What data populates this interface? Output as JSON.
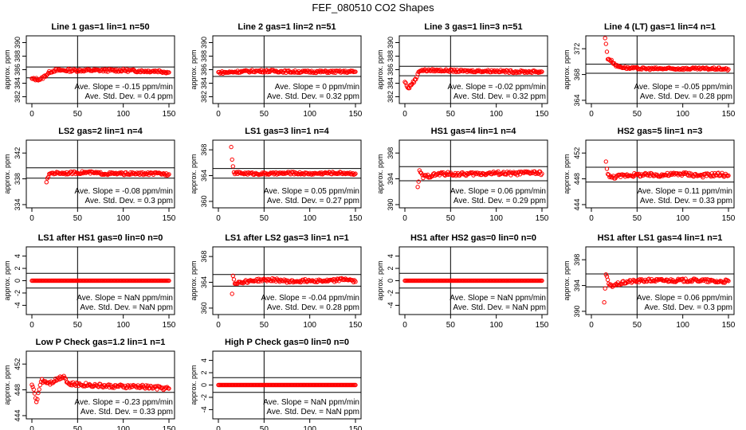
{
  "title": "FEF_080510  CO2 Shapes",
  "colors": {
    "points": "#ff0000",
    "axes": "#000000"
  },
  "common": {
    "ylabel": "approx. ppm",
    "slope_prefix": "Ave. Slope = ",
    "slope_unit": " ppm/min",
    "sd_prefix": "Ave. Std. Dev. = ",
    "sd_unit": " ppm",
    "x_ticks": [
      "0",
      "50",
      "100",
      "150"
    ],
    "xlim": [
      0,
      150
    ]
  },
  "chart_data": [
    {
      "type": "scatter",
      "title": "Line 1 gas=1 lin=1 n=50",
      "ylim": [
        381,
        391
      ],
      "yticks": [
        382,
        384,
        386,
        388,
        390
      ],
      "hlines": [
        384.8,
        386.4
      ],
      "slope": "-0.15",
      "sd": "0.4",
      "x": [
        0,
        10,
        20,
        25,
        40,
        60,
        80,
        100,
        120,
        140,
        150
      ],
      "y": [
        384.6,
        384.6,
        385.7,
        385.9,
        385.9,
        385.9,
        385.9,
        385.9,
        385.8,
        385.8,
        385.6
      ]
    },
    {
      "type": "scatter",
      "title": "Line 2 gas=1 lin=2 n=51",
      "ylim": [
        381,
        391
      ],
      "yticks": [
        382,
        384,
        386,
        388,
        390
      ],
      "hlines": [
        385.0,
        386.4
      ],
      "slope": "0",
      "sd": "0.32",
      "x": [
        0,
        10,
        20,
        40,
        60,
        80,
        100,
        120,
        140,
        150
      ],
      "y": [
        385.6,
        385.6,
        385.7,
        385.8,
        385.8,
        385.7,
        385.7,
        385.7,
        385.7,
        385.7
      ]
    },
    {
      "type": "scatter",
      "title": "Line 3 gas=1 lin=3 n=51",
      "ylim": [
        381,
        391
      ],
      "yticks": [
        382,
        384,
        386,
        388,
        390
      ],
      "hlines": [
        385.1,
        386.5
      ],
      "slope": "-0.02",
      "sd": "0.32",
      "x": [
        0,
        4,
        8,
        12,
        15,
        20,
        40,
        60,
        80,
        100,
        120,
        140,
        150
      ],
      "y": [
        384.2,
        383.2,
        384.0,
        384.6,
        385.8,
        385.9,
        385.9,
        385.8,
        385.8,
        385.8,
        385.7,
        385.7,
        385.7
      ]
    },
    {
      "type": "scatter",
      "title": "Line 4 (LT) gas=1 lin=4 n=1",
      "ylim": [
        363.5,
        374
      ],
      "yticks": [
        364,
        368,
        372
      ],
      "hlines": [
        368.2,
        369.6
      ],
      "slope": "-0.05",
      "sd": "0.28",
      "x": [
        15,
        18,
        22,
        28,
        40,
        60,
        80,
        100,
        120,
        140,
        150
      ],
      "y": [
        373.7,
        370.5,
        370.1,
        369.3,
        369.0,
        368.9,
        368.9,
        368.9,
        368.9,
        368.9,
        368.8
      ]
    },
    {
      "type": "scatter",
      "title": "LS2 gas=2 lin=1 n=4",
      "ylim": [
        333.5,
        344
      ],
      "yticks": [
        334,
        338,
        342
      ],
      "hlines": [
        338.1,
        339.7
      ],
      "slope": "-0.08",
      "sd": "0.3",
      "x": [
        16,
        20,
        40,
        60,
        80,
        100,
        120,
        140,
        150
      ],
      "y": [
        337.6,
        338.9,
        338.9,
        339.0,
        338.8,
        338.8,
        338.8,
        338.8,
        338.7
      ]
    },
    {
      "type": "scatter",
      "title": "LS1 gas=3 lin=1 n=4",
      "ylim": [
        359,
        369.5
      ],
      "yticks": [
        360,
        364,
        368
      ],
      "hlines": [
        363.6,
        365.1
      ],
      "slope": "0.05",
      "sd": "0.27",
      "x": [
        14,
        15,
        17,
        20,
        40,
        60,
        80,
        100,
        120,
        140,
        150
      ],
      "y": [
        368.6,
        366.3,
        364.4,
        364.4,
        364.3,
        364.3,
        364.4,
        364.3,
        364.4,
        364.4,
        364.3
      ]
    },
    {
      "type": "scatter",
      "title": "HS1 gas=4 lin=1 n=4",
      "ylim": [
        389.5,
        400
      ],
      "yticks": [
        390,
        394,
        398
      ],
      "hlines": [
        393.7,
        395.9
      ],
      "slope": "0.06",
      "sd": "0.29",
      "x": [
        14,
        16,
        20,
        40,
        60,
        80,
        100,
        120,
        140,
        150
      ],
      "y": [
        392.5,
        395.1,
        394.3,
        394.8,
        394.7,
        394.8,
        394.9,
        394.8,
        395.0,
        394.8
      ]
    },
    {
      "type": "scatter",
      "title": "HS2 gas=5 lin=1 n=3",
      "ylim": [
        443.5,
        454
      ],
      "yticks": [
        444,
        448,
        452
      ],
      "hlines": [
        447.5,
        449.8
      ],
      "slope": "0.11",
      "sd": "0.33",
      "x": [
        16,
        18,
        20,
        40,
        60,
        80,
        100,
        120,
        140,
        150
      ],
      "y": [
        450.5,
        449.0,
        448.2,
        448.6,
        448.6,
        448.6,
        448.8,
        448.5,
        448.7,
        448.5
      ]
    },
    {
      "type": "scatter",
      "title": "LS1 after HS1 gas=0 lin=0 n=0",
      "ylim": [
        -5.5,
        5.5
      ],
      "yticks": [
        -4,
        -2,
        0,
        2,
        4
      ],
      "hlines": [
        -1.2,
        1.2
      ],
      "slope": "NaN",
      "sd": "NaN",
      "x": [
        0,
        25,
        50,
        75,
        100,
        125,
        150
      ],
      "y": [
        0,
        0,
        0,
        0,
        0,
        0,
        0
      ]
    },
    {
      "type": "scatter",
      "title": "LS1 after LS2 gas=3 lin=1 n=1",
      "ylim": [
        359,
        369.5
      ],
      "yticks": [
        360,
        364,
        368
      ],
      "hlines": [
        363.4,
        365.2
      ],
      "slope": "-0.04",
      "sd": "0.28",
      "x": [
        15,
        16,
        18,
        40,
        60,
        80,
        100,
        120,
        140,
        150
      ],
      "y": [
        362.2,
        365.1,
        363.9,
        364.3,
        364.4,
        364.1,
        364.3,
        364.2,
        364.5,
        364.1
      ]
    },
    {
      "type": "scatter",
      "title": "HS1 after HS2 gas=0 lin=0 n=0",
      "ylim": [
        -5.5,
        5.5
      ],
      "yticks": [
        -4,
        -2,
        0,
        2,
        4
      ],
      "hlines": [
        -1.2,
        1.2
      ],
      "slope": "NaN",
      "sd": "NaN",
      "x": [
        0,
        25,
        50,
        75,
        100,
        125,
        150
      ],
      "y": [
        0,
        0,
        0,
        0,
        0,
        0,
        0
      ]
    },
    {
      "type": "scatter",
      "title": "HS1 after LS1 gas=4 lin=1 n=1",
      "ylim": [
        389.5,
        400
      ],
      "yticks": [
        390,
        394,
        398
      ],
      "hlines": [
        393.8,
        395.8
      ],
      "slope": "0.06",
      "sd": "0.3",
      "x": [
        14,
        16,
        20,
        40,
        60,
        80,
        100,
        120,
        140,
        150
      ],
      "y": [
        391.5,
        395.6,
        393.9,
        394.6,
        394.8,
        394.8,
        394.8,
        394.8,
        394.6,
        394.7
      ]
    },
    {
      "type": "scatter",
      "title": "Low P Check gas=1.2 lin=1 n=1",
      "ylim": [
        443.5,
        454
      ],
      "yticks": [
        444,
        448,
        452
      ],
      "hlines": [
        447.6,
        449.9
      ],
      "slope": "-0.23",
      "sd": "0.33",
      "x": [
        0,
        5,
        10,
        20,
        35,
        40,
        60,
        80,
        100,
        120,
        140,
        150
      ],
      "y": [
        449.0,
        446.1,
        449.5,
        449.1,
        450.2,
        448.9,
        448.8,
        448.6,
        448.5,
        448.5,
        448.3,
        448.2
      ]
    },
    {
      "type": "scatter",
      "title": "High P Check gas=0 lin=0 n=0",
      "ylim": [
        -5.5,
        5.5
      ],
      "yticks": [
        -4,
        -2,
        0,
        2,
        4
      ],
      "hlines": [
        -1.2,
        1.2
      ],
      "slope": "NaN",
      "sd": "NaN",
      "x": [
        0,
        25,
        50,
        75,
        100,
        125,
        150
      ],
      "y": [
        0,
        0,
        0,
        0,
        0,
        0,
        0
      ]
    }
  ]
}
